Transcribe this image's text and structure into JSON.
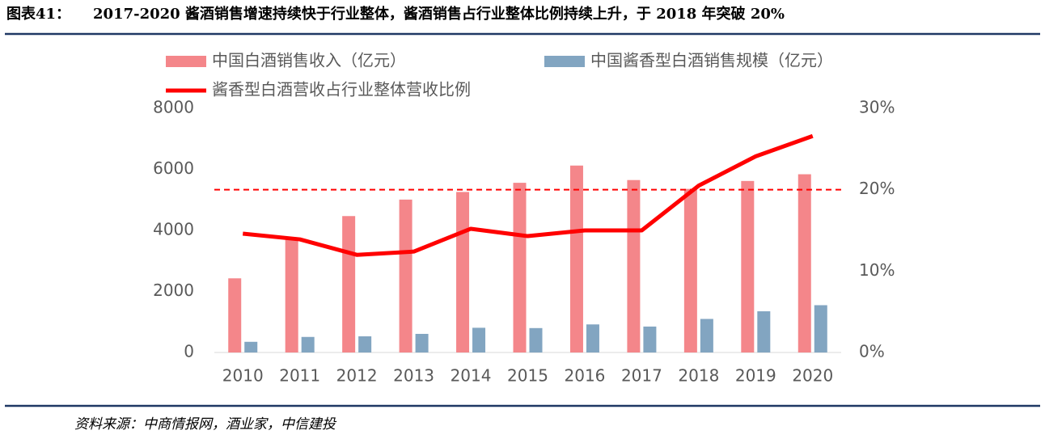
{
  "header": {
    "label": "图表41：",
    "title": "2017-2020 酱酒销售增速持续快于行业整体，酱酒销售占行业整体比例持续上升，于 2018 年突破 20%"
  },
  "chart_data": {
    "type": "bar-line",
    "categories": [
      "2010",
      "2011",
      "2012",
      "2013",
      "2014",
      "2015",
      "2016",
      "2017",
      "2018",
      "2019",
      "2020"
    ],
    "series": [
      {
        "name": "中国白酒销售收入（亿元）",
        "color": "#f4868a",
        "type": "bar",
        "values": [
          2430,
          3750,
          4470,
          5010,
          5260,
          5560,
          6125,
          5650,
          5360,
          5620,
          5840
        ]
      },
      {
        "name": "中国酱香型白酒销售规模（亿元）",
        "color": "#82a5c1",
        "type": "bar",
        "values": [
          350,
          510,
          530,
          610,
          810,
          800,
          920,
          850,
          1100,
          1350,
          1550
        ]
      },
      {
        "name": "酱香型白酒营收占行业整体营收比例",
        "color": "#ff0000",
        "type": "line",
        "axis": "y2",
        "values": [
          14.6,
          13.9,
          12.0,
          12.4,
          15.2,
          14.3,
          15.0,
          15.0,
          20.5,
          24.1,
          26.6
        ]
      }
    ],
    "reference_line": {
      "value": 20,
      "axis": "y2",
      "color": "#ff0000"
    },
    "ylim": [
      0,
      8000
    ],
    "yticks": [
      0,
      2000,
      4000,
      6000,
      8000
    ],
    "y2lim": [
      0,
      30
    ],
    "y2ticks": [
      {
        "value": 0,
        "label": "0%"
      },
      {
        "value": 10,
        "label": "10%"
      },
      {
        "value": 20,
        "label": "20%"
      },
      {
        "value": 30,
        "label": "30%"
      }
    ]
  },
  "footer": {
    "source": "资料来源：中商情报网，酒业家，中信建投"
  }
}
